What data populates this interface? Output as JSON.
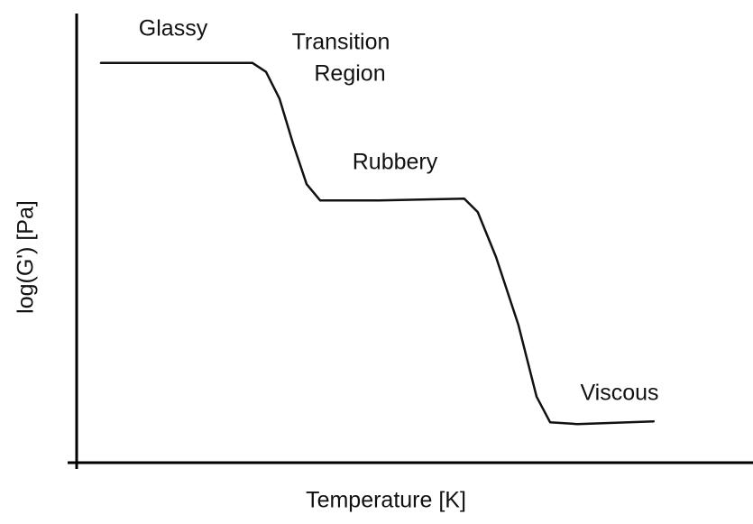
{
  "chart_data": {
    "type": "line",
    "x_label": "Temperature [K]",
    "y_label": "log(G') [Pa]",
    "xlim": [
      0,
      100
    ],
    "ylim": [
      0,
      100
    ],
    "annotations": [
      "Glassy",
      "Transition",
      "Region",
      "Rubbery",
      "Viscous"
    ],
    "series": [
      {
        "name": "G'",
        "color": "#111111",
        "x": [
          3.6,
          26,
          28,
          30,
          32,
          34,
          36,
          44.7,
          57.3,
          59.3,
          62,
          65.3,
          68,
          70,
          74,
          85.3
        ],
        "values": [
          89,
          89,
          87,
          81,
          71,
          62,
          58.4,
          58.4,
          58.8,
          55.8,
          45.8,
          30.7,
          14.7,
          9,
          8.6,
          9.2
        ]
      }
    ]
  }
}
